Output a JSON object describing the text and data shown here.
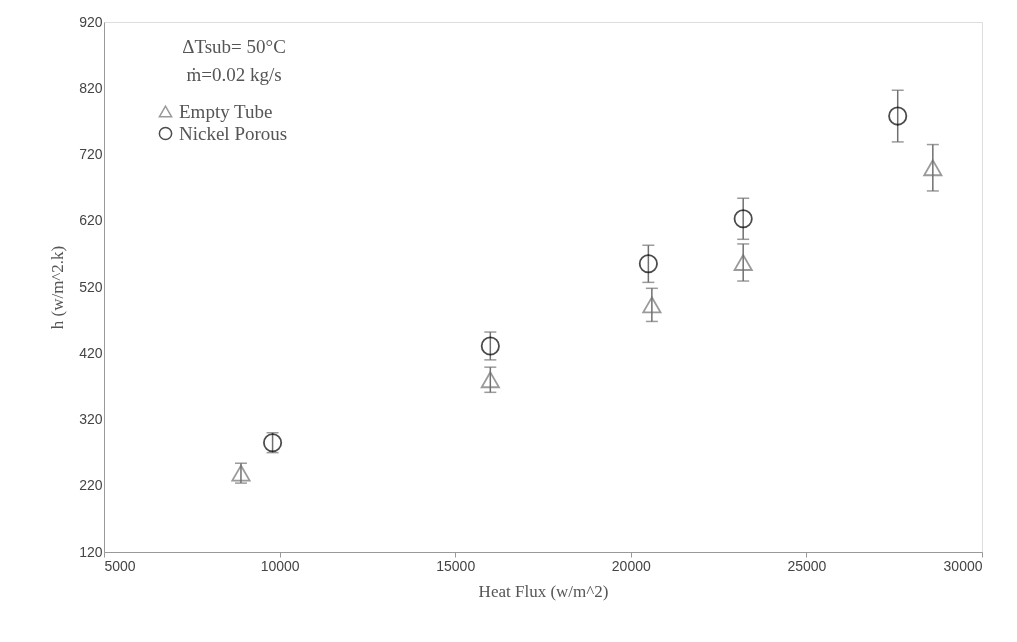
{
  "chart_data": {
    "type": "scatter",
    "xlabel": "Heat Flux (w/m^2)",
    "ylabel": "h (w/m^2.k)",
    "annotations": [
      "ΔTsub= 50°C",
      "ṁ=0.02 kg/s"
    ],
    "xlim": [
      5000,
      30000
    ],
    "xticks": [
      5000,
      10000,
      15000,
      20000,
      25000,
      30000
    ],
    "ylim": [
      120,
      920
    ],
    "yticks": [
      120,
      220,
      320,
      420,
      520,
      620,
      720,
      820,
      920
    ],
    "grid": false,
    "legend": "top left",
    "series": [
      {
        "name": "Empty Tube",
        "color": "#707070",
        "marker": "triangle",
        "x": [
          8900,
          16000,
          20600,
          23200,
          28600
        ],
        "values": [
          239,
          380,
          493,
          557,
          700
        ],
        "errors": [
          15,
          19,
          25,
          28,
          35
        ]
      },
      {
        "name": "Nickel Porous",
        "color": "#000000",
        "marker": "circle",
        "x": [
          9800,
          16000,
          20500,
          23200,
          27600
        ],
        "values": [
          285,
          431,
          555,
          623,
          778
        ],
        "errors": [
          15,
          21,
          28,
          31,
          39
        ]
      }
    ]
  }
}
